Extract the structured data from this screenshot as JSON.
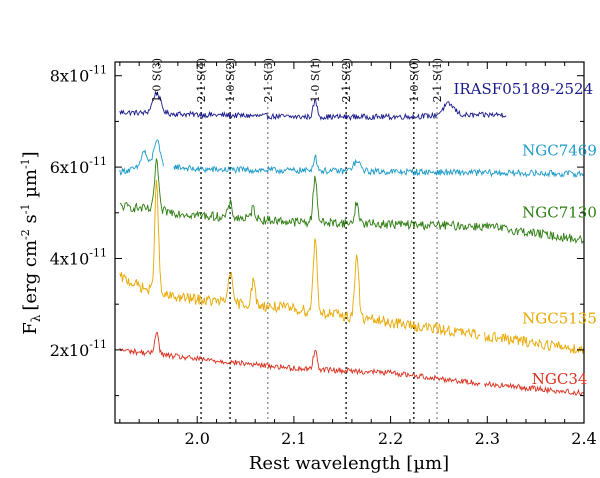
{
  "chart_data": {
    "type": "line",
    "title": "",
    "xlabel": "Rest wavelength [µm]",
    "ylabel": "Fλ [erg cm⁻² s⁻¹ µm⁻¹]",
    "ylabel_parts": {
      "f": "F",
      "lambda": "λ",
      "bracket_open": "[erg cm",
      "exp_cm": "-2",
      "s": " s",
      "exp_s": "-1",
      "um": " µm",
      "exp_um": "-1",
      "bracket_close": "]"
    },
    "xlim": [
      1.915,
      2.4
    ],
    "ylim": [
      0.4,
      8.3
    ],
    "y_scale_label": "x10",
    "y_scale_exp": "-11",
    "x_ticks": [
      {
        "value": 2.0,
        "label": "2.0"
      },
      {
        "value": 2.1,
        "label": "2.1"
      },
      {
        "value": 2.2,
        "label": "2.2"
      },
      {
        "value": 2.3,
        "label": "2.3"
      },
      {
        "value": 2.4,
        "label": "2.4"
      }
    ],
    "y_ticks": [
      {
        "value": 2,
        "label": "2"
      },
      {
        "value": 4,
        "label": "4"
      },
      {
        "value": 6,
        "label": "6"
      },
      {
        "value": 8,
        "label": "8"
      }
    ],
    "lines": [
      {
        "name": "1-0 S(3)",
        "x": 1.958,
        "style": "none"
      },
      {
        "name": "2-1 S(4)",
        "x": 2.004,
        "style": "dotted"
      },
      {
        "name": "1-0 S(2)",
        "x": 2.034,
        "style": "dotted"
      },
      {
        "name": "2-1 S(3)",
        "x": 2.073,
        "style": "dotted-light"
      },
      {
        "name": "1-0 S(1)",
        "x": 2.122,
        "style": "none"
      },
      {
        "name": "2-1 S(2)",
        "x": 2.154,
        "style": "dotted"
      },
      {
        "name": "1-0 S(0)",
        "x": 2.224,
        "style": "dotted"
      },
      {
        "name": "2-1 S(1)",
        "x": 2.248,
        "style": "dotted-light"
      }
    ],
    "series": [
      {
        "name": "IRASF05189-2524",
        "color": "#1a1a8c",
        "x_range": [
          1.92,
          2.32
        ],
        "gaps": [],
        "continuum": [
          [
            1.92,
            7.2
          ],
          [
            2.0,
            7.15
          ],
          [
            2.1,
            7.1
          ],
          [
            2.2,
            7.1
          ],
          [
            2.32,
            7.15
          ]
        ],
        "noise": 0.06,
        "features": [
          {
            "x": 1.958,
            "amp": 0.45,
            "w": 0.004
          },
          {
            "x": 2.122,
            "amp": 0.35,
            "w": 0.002
          },
          {
            "x": 2.26,
            "amp": 0.25,
            "w": 0.006
          }
        ],
        "label_value": [
          2.265,
          7.6
        ]
      },
      {
        "name": "NGC7469",
        "color": "#1e9ac8",
        "x_range": [
          1.92,
          2.4
        ],
        "gaps": [
          [
            1.965,
            1.975
          ]
        ],
        "continuum": [
          [
            1.92,
            5.9
          ],
          [
            1.96,
            6.05
          ],
          [
            2.0,
            5.95
          ],
          [
            2.2,
            5.9
          ],
          [
            2.4,
            5.85
          ]
        ],
        "noise": 0.07,
        "features": [
          {
            "x": 1.958,
            "amp": 0.55,
            "w": 0.003
          },
          {
            "x": 1.945,
            "amp": 0.35,
            "w": 0.003
          },
          {
            "x": 2.122,
            "amp": 0.3,
            "w": 0.002
          },
          {
            "x": 2.165,
            "amp": 0.2,
            "w": 0.004
          }
        ],
        "label_value": [
          2.336,
          6.25
        ]
      },
      {
        "name": "NGC7130",
        "color": "#2e7d12",
        "x_range": [
          1.92,
          2.4
        ],
        "gaps": [],
        "continuum": [
          [
            1.92,
            5.15
          ],
          [
            2.0,
            4.95
          ],
          [
            2.1,
            4.8
          ],
          [
            2.2,
            4.75
          ],
          [
            2.3,
            4.7
          ],
          [
            2.4,
            4.4
          ]
        ],
        "noise": 0.1,
        "features": [
          {
            "x": 1.958,
            "amp": 1.1,
            "w": 0.002
          },
          {
            "x": 2.034,
            "amp": 0.3,
            "w": 0.002
          },
          {
            "x": 2.058,
            "amp": 0.25,
            "w": 0.002
          },
          {
            "x": 2.122,
            "amp": 1.0,
            "w": 0.002
          },
          {
            "x": 2.165,
            "amp": 0.45,
            "w": 0.002
          }
        ],
        "label_value": [
          2.336,
          4.9
        ]
      },
      {
        "name": "NGC5135",
        "color": "#e8a800",
        "x_range": [
          1.92,
          2.4
        ],
        "gaps": [
          [
            2.293,
            2.297
          ]
        ],
        "continuum": [
          [
            1.92,
            3.6
          ],
          [
            1.96,
            3.2
          ],
          [
            2.0,
            3.1
          ],
          [
            2.1,
            2.9
          ],
          [
            2.2,
            2.6
          ],
          [
            2.3,
            2.3
          ],
          [
            2.4,
            2.0
          ]
        ],
        "noise": 0.12,
        "features": [
          {
            "x": 1.958,
            "amp": 2.4,
            "w": 0.002
          },
          {
            "x": 2.034,
            "amp": 0.7,
            "w": 0.002
          },
          {
            "x": 2.058,
            "amp": 0.5,
            "w": 0.002
          },
          {
            "x": 2.122,
            "amp": 1.6,
            "w": 0.002
          },
          {
            "x": 2.165,
            "amp": 1.4,
            "w": 0.002
          }
        ],
        "label_value": [
          2.336,
          2.58
        ]
      },
      {
        "name": "NGC34",
        "color": "#d8301e",
        "x_range": [
          1.92,
          2.4
        ],
        "gaps": [
          [
            2.293,
            2.297
          ]
        ],
        "continuum": [
          [
            1.92,
            2.0
          ],
          [
            2.0,
            1.8
          ],
          [
            2.1,
            1.6
          ],
          [
            2.2,
            1.5
          ],
          [
            2.3,
            1.25
          ],
          [
            2.4,
            1.05
          ]
        ],
        "noise": 0.06,
        "features": [
          {
            "x": 1.958,
            "amp": 0.5,
            "w": 0.002
          },
          {
            "x": 2.122,
            "amp": 0.4,
            "w": 0.002
          }
        ],
        "label_value": [
          2.346,
          1.25
        ]
      }
    ]
  }
}
